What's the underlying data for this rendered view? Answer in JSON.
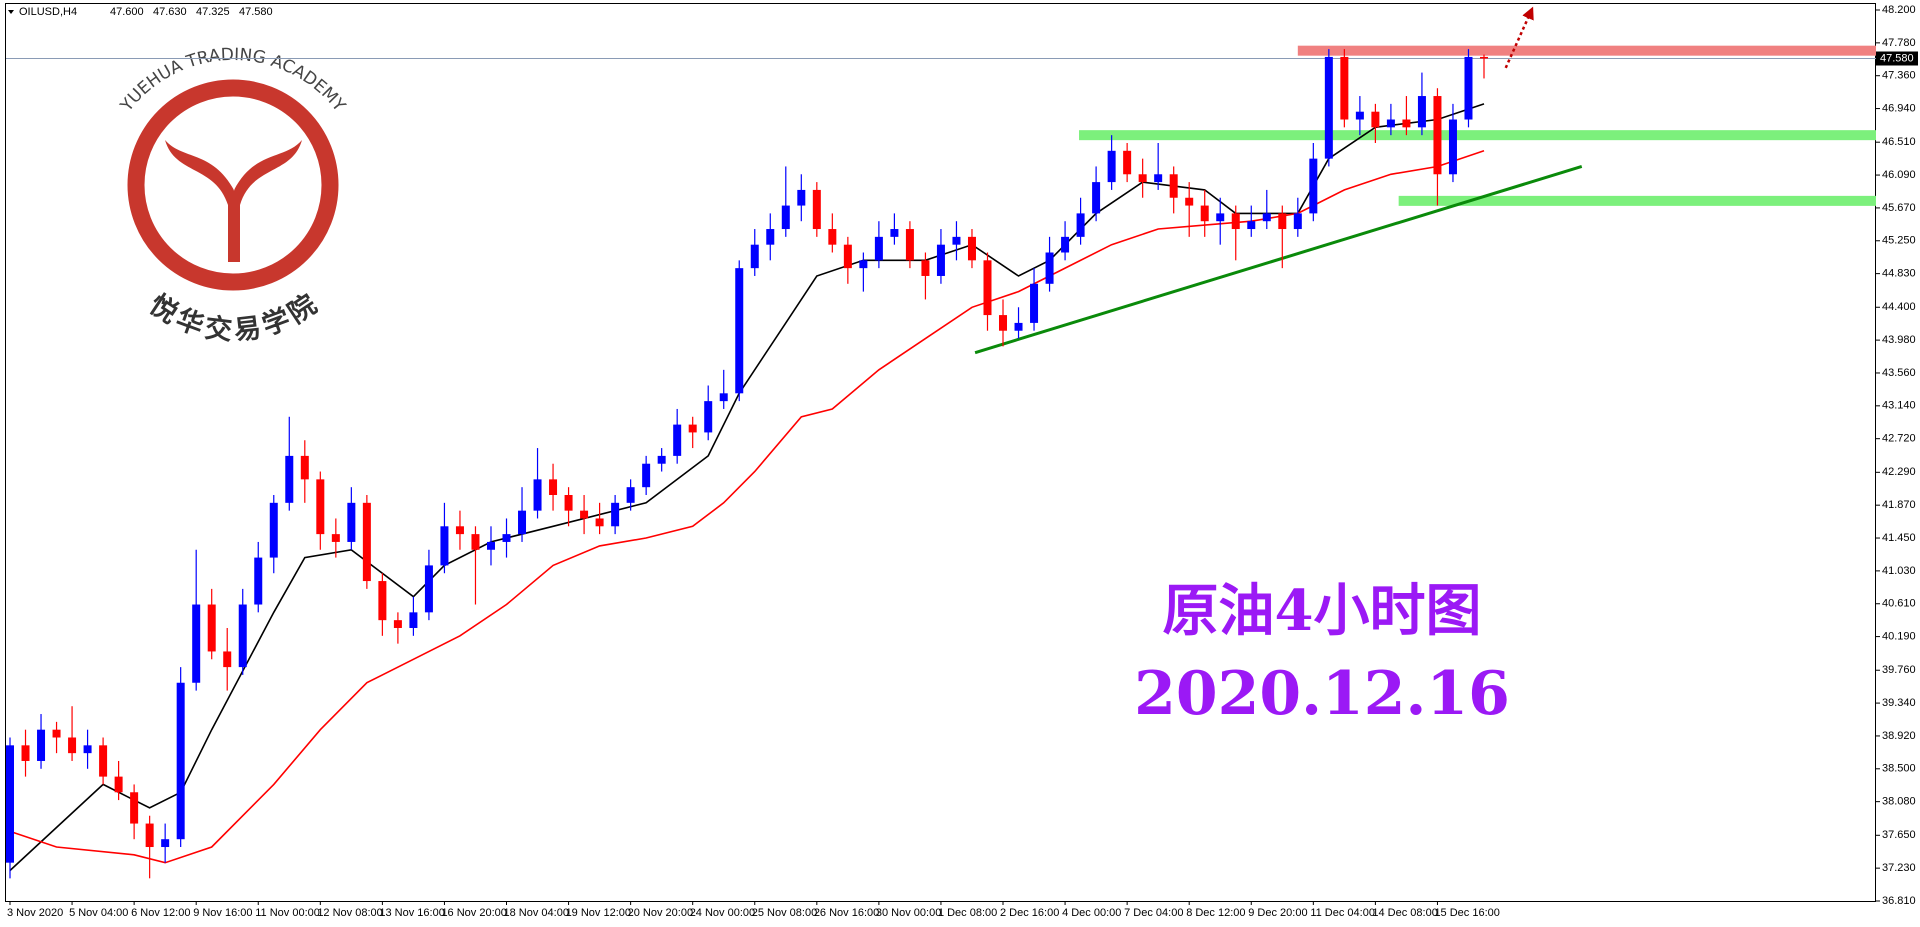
{
  "chart_data": {
    "type": "candlestick",
    "header": {
      "symbol": "OILUSD,H4",
      "ohlc": [
        "47.600",
        "47.630",
        "47.325",
        "47.580"
      ]
    },
    "logo": {
      "text_en": "YUEHUA TRADING ACADEMY",
      "text_cn": "悦华交易学院",
      "color": "#c8372d"
    },
    "annotations": {
      "title": "原油4小时图",
      "date": "2020.12.16",
      "color": "#9b19f5"
    },
    "up_color": "#0000ff",
    "down_color": "#ff0000",
    "ylim": [
      36.81,
      48.2
    ],
    "yticks": [
      {
        "value": 48.2,
        "label": "48.200"
      },
      {
        "value": 47.78,
        "label": "47.780"
      },
      {
        "value": 47.36,
        "label": "47.360"
      },
      {
        "value": 46.94,
        "label": "46.940"
      },
      {
        "value": 46.51,
        "label": "46.510"
      },
      {
        "value": 46.09,
        "label": "46.090"
      },
      {
        "value": 45.67,
        "label": "45.670"
      },
      {
        "value": 45.25,
        "label": "45.250"
      },
      {
        "value": 44.83,
        "label": "44.830"
      },
      {
        "value": 44.4,
        "label": "44.400"
      },
      {
        "value": 43.98,
        "label": "43.980"
      },
      {
        "value": 43.56,
        "label": "43.560"
      },
      {
        "value": 43.14,
        "label": "43.140"
      },
      {
        "value": 42.72,
        "label": "42.720"
      },
      {
        "value": 42.29,
        "label": "42.290"
      },
      {
        "value": 41.87,
        "label": "41.870"
      },
      {
        "value": 41.45,
        "label": "41.450"
      },
      {
        "value": 41.03,
        "label": "41.030"
      },
      {
        "value": 40.61,
        "label": "40.610"
      },
      {
        "value": 40.19,
        "label": "40.190"
      },
      {
        "value": 39.76,
        "label": "39.760"
      },
      {
        "value": 39.34,
        "label": "39.340"
      },
      {
        "value": 38.92,
        "label": "38.920"
      },
      {
        "value": 38.5,
        "label": "38.500"
      },
      {
        "value": 38.08,
        "label": "38.080"
      },
      {
        "value": 37.65,
        "label": "37.650"
      },
      {
        "value": 37.23,
        "label": "37.230"
      },
      {
        "value": 36.81,
        "label": "36.810"
      }
    ],
    "price_line": {
      "value": 47.58,
      "label": "47.580",
      "color": "#8a9bb5"
    },
    "categories": [
      "3 Nov 2020",
      null,
      null,
      null,
      "5 Nov 04:00",
      null,
      null,
      null,
      "6 Nov 12:00",
      null,
      null,
      null,
      "9 Nov 16:00",
      null,
      null,
      null,
      "11 Nov 00:00",
      null,
      null,
      null,
      "12 Nov 08:00",
      null,
      null,
      null,
      "13 Nov 16:00",
      null,
      null,
      null,
      "16 Nov 20:00",
      null,
      null,
      null,
      "18 Nov 04:00",
      null,
      null,
      null,
      "19 Nov 12:00",
      null,
      null,
      null,
      "20 Nov 20:00",
      null,
      null,
      null,
      "24 Nov 00:00",
      null,
      null,
      null,
      "25 Nov 08:00",
      null,
      null,
      null,
      "26 Nov 16:00",
      null,
      null,
      null,
      "30 Nov 00:00",
      null,
      null,
      null,
      "1 Dec 08:00",
      null,
      null,
      null,
      "2 Dec 16:00",
      null,
      null,
      null,
      "4 Dec 00:00",
      null,
      null,
      null,
      "7 Dec 04:00",
      null,
      null,
      null,
      "8 Dec 12:00",
      null,
      null,
      null,
      "9 Dec 20:00",
      null,
      null,
      null,
      "11 Dec 04:00",
      null,
      null,
      null,
      "14 Dec 08:00",
      null,
      null,
      null,
      "15 Dec 16:00",
      null,
      null,
      null
    ],
    "candles": [
      [
        37.3,
        38.9,
        37.1,
        38.8
      ],
      [
        38.8,
        39.0,
        38.4,
        38.6
      ],
      [
        38.6,
        39.2,
        38.5,
        39.0
      ],
      [
        39.0,
        39.1,
        38.7,
        38.9
      ],
      [
        38.9,
        39.3,
        38.6,
        38.7
      ],
      [
        38.7,
        39.0,
        38.5,
        38.8
      ],
      [
        38.8,
        38.9,
        38.3,
        38.4
      ],
      [
        38.4,
        38.6,
        38.1,
        38.2
      ],
      [
        38.2,
        38.3,
        37.6,
        37.8
      ],
      [
        37.8,
        37.9,
        37.1,
        37.5
      ],
      [
        37.5,
        37.8,
        37.3,
        37.6
      ],
      [
        37.6,
        39.8,
        37.5,
        39.6
      ],
      [
        39.6,
        41.3,
        39.5,
        40.6
      ],
      [
        40.6,
        40.8,
        39.9,
        40.0
      ],
      [
        40.0,
        40.3,
        39.5,
        39.8
      ],
      [
        39.8,
        40.8,
        39.7,
        40.6
      ],
      [
        40.6,
        41.4,
        40.5,
        41.2
      ],
      [
        41.2,
        42.0,
        41.0,
        41.9
      ],
      [
        41.9,
        43.0,
        41.8,
        42.5
      ],
      [
        42.5,
        42.7,
        41.9,
        42.2
      ],
      [
        42.2,
        42.3,
        41.3,
        41.5
      ],
      [
        41.5,
        41.7,
        41.2,
        41.4
      ],
      [
        41.4,
        42.1,
        41.3,
        41.9
      ],
      [
        41.9,
        42.0,
        40.8,
        40.9
      ],
      [
        40.9,
        41.0,
        40.2,
        40.4
      ],
      [
        40.4,
        40.5,
        40.1,
        40.3
      ],
      [
        40.3,
        40.7,
        40.2,
        40.5
      ],
      [
        40.5,
        41.3,
        40.4,
        41.1
      ],
      [
        41.1,
        41.9,
        41.0,
        41.6
      ],
      [
        41.6,
        41.8,
        41.3,
        41.5
      ],
      [
        41.5,
        41.6,
        40.6,
        41.3
      ],
      [
        41.3,
        41.6,
        41.1,
        41.4
      ],
      [
        41.4,
        41.7,
        41.2,
        41.5
      ],
      [
        41.5,
        42.1,
        41.4,
        41.8
      ],
      [
        41.8,
        42.6,
        41.7,
        42.2
      ],
      [
        42.2,
        42.4,
        41.8,
        42.0
      ],
      [
        42.0,
        42.1,
        41.6,
        41.8
      ],
      [
        41.8,
        42.0,
        41.5,
        41.7
      ],
      [
        41.7,
        41.9,
        41.5,
        41.6
      ],
      [
        41.6,
        42.0,
        41.5,
        41.9
      ],
      [
        41.9,
        42.2,
        41.8,
        42.1
      ],
      [
        42.1,
        42.5,
        42.0,
        42.4
      ],
      [
        42.4,
        42.6,
        42.3,
        42.5
      ],
      [
        42.5,
        43.1,
        42.4,
        42.9
      ],
      [
        42.9,
        43.0,
        42.6,
        42.8
      ],
      [
        42.8,
        43.4,
        42.7,
        43.2
      ],
      [
        43.2,
        43.6,
        43.1,
        43.3
      ],
      [
        43.3,
        45.0,
        43.2,
        44.9
      ],
      [
        44.9,
        45.4,
        44.8,
        45.2
      ],
      [
        45.2,
        45.6,
        45.0,
        45.4
      ],
      [
        45.4,
        46.2,
        45.3,
        45.7
      ],
      [
        45.7,
        46.1,
        45.5,
        45.9
      ],
      [
        45.9,
        46.0,
        45.3,
        45.4
      ],
      [
        45.4,
        45.6,
        45.1,
        45.2
      ],
      [
        45.2,
        45.3,
        44.7,
        44.9
      ],
      [
        44.9,
        45.1,
        44.6,
        45.0
      ],
      [
        45.0,
        45.5,
        44.9,
        45.3
      ],
      [
        45.3,
        45.6,
        45.2,
        45.4
      ],
      [
        45.4,
        45.5,
        44.9,
        45.0
      ],
      [
        45.0,
        45.1,
        44.5,
        44.8
      ],
      [
        44.8,
        45.4,
        44.7,
        45.2
      ],
      [
        45.2,
        45.5,
        45.0,
        45.3
      ],
      [
        45.3,
        45.4,
        44.9,
        45.0
      ],
      [
        45.0,
        45.1,
        44.1,
        44.3
      ],
      [
        44.3,
        44.5,
        43.9,
        44.1
      ],
      [
        44.1,
        44.4,
        44.0,
        44.2
      ],
      [
        44.2,
        44.9,
        44.1,
        44.7
      ],
      [
        44.7,
        45.3,
        44.6,
        45.1
      ],
      [
        45.1,
        45.5,
        45.0,
        45.3
      ],
      [
        45.3,
        45.8,
        45.2,
        45.6
      ],
      [
        45.6,
        46.2,
        45.5,
        46.0
      ],
      [
        46.0,
        46.6,
        45.9,
        46.4
      ],
      [
        46.4,
        46.5,
        46.0,
        46.1
      ],
      [
        46.1,
        46.3,
        45.8,
        46.0
      ],
      [
        46.0,
        46.5,
        45.9,
        46.1
      ],
      [
        46.1,
        46.2,
        45.6,
        45.8
      ],
      [
        45.8,
        46.0,
        45.3,
        45.7
      ],
      [
        45.7,
        45.9,
        45.3,
        45.5
      ],
      [
        45.5,
        45.8,
        45.2,
        45.6
      ],
      [
        45.6,
        45.7,
        45.0,
        45.4
      ],
      [
        45.4,
        45.7,
        45.3,
        45.5
      ],
      [
        45.5,
        45.9,
        45.4,
        45.6
      ],
      [
        45.6,
        45.7,
        44.9,
        45.4
      ],
      [
        45.4,
        45.8,
        45.3,
        45.6
      ],
      [
        45.6,
        46.5,
        45.5,
        46.3
      ],
      [
        46.3,
        47.7,
        46.2,
        47.6
      ],
      [
        47.6,
        47.7,
        46.7,
        46.8
      ],
      [
        46.8,
        47.1,
        46.6,
        46.9
      ],
      [
        46.9,
        47.0,
        46.5,
        46.7
      ],
      [
        46.7,
        47.0,
        46.6,
        46.8
      ],
      [
        46.8,
        47.1,
        46.6,
        46.7
      ],
      [
        46.7,
        47.4,
        46.6,
        47.1
      ],
      [
        47.1,
        47.2,
        45.7,
        46.1
      ],
      [
        46.1,
        47.0,
        46.0,
        46.8
      ],
      [
        46.8,
        47.7,
        46.7,
        47.6
      ],
      [
        47.6,
        47.63,
        47.325,
        47.58
      ]
    ],
    "series": [
      {
        "color": "#000000",
        "x": [
          0,
          6,
          9,
          11,
          13,
          17,
          19,
          22,
          26,
          28,
          31,
          35,
          41,
          45,
          47,
          50,
          52,
          55,
          59,
          62,
          65,
          67,
          70,
          73,
          77,
          79,
          83,
          85,
          88,
          92,
          95
        ],
        "values": [
          37.2,
          38.3,
          38.0,
          38.2,
          39.0,
          40.5,
          41.2,
          41.3,
          40.7,
          41.1,
          41.4,
          41.6,
          41.9,
          42.5,
          43.3,
          44.2,
          44.8,
          45.0,
          45.0,
          45.2,
          44.8,
          45.0,
          45.6,
          46.0,
          45.9,
          45.6,
          45.6,
          46.3,
          46.7,
          46.8,
          47.0
        ]
      },
      {
        "color": "#ff0000",
        "x": [
          0,
          3,
          8,
          10,
          13,
          17,
          20,
          23,
          26,
          29,
          32,
          35,
          38,
          41,
          44,
          46,
          48,
          51,
          53,
          56,
          59,
          62,
          65,
          68,
          71,
          74,
          77,
          80,
          83,
          86,
          89,
          92,
          95
        ],
        "values": [
          37.7,
          37.5,
          37.4,
          37.3,
          37.5,
          38.3,
          39.0,
          39.6,
          39.9,
          40.2,
          40.6,
          41.1,
          41.35,
          41.45,
          41.6,
          41.9,
          42.3,
          43.0,
          43.1,
          43.6,
          44.0,
          44.4,
          44.6,
          44.9,
          45.2,
          45.4,
          45.45,
          45.5,
          45.6,
          45.9,
          46.1,
          46.2,
          46.4
        ]
      }
    ],
    "zones": [
      {
        "y": 47.68,
        "x_start": 83,
        "color": "#f08080"
      },
      {
        "y": 46.6,
        "x_start": 68.9,
        "color": "#7cf07c"
      },
      {
        "y": 45.76,
        "x_start": 89.5,
        "color": "#7cf07c"
      }
    ],
    "trend_line": {
      "x": [
        62.2,
        101.3
      ],
      "y": [
        43.82,
        46.2
      ],
      "color": "#0a8a0a"
    },
    "arrow": {
      "x": [
        96.4,
        98.0
      ],
      "y": [
        47.46,
        48.17
      ],
      "color": "#c00000"
    }
  }
}
